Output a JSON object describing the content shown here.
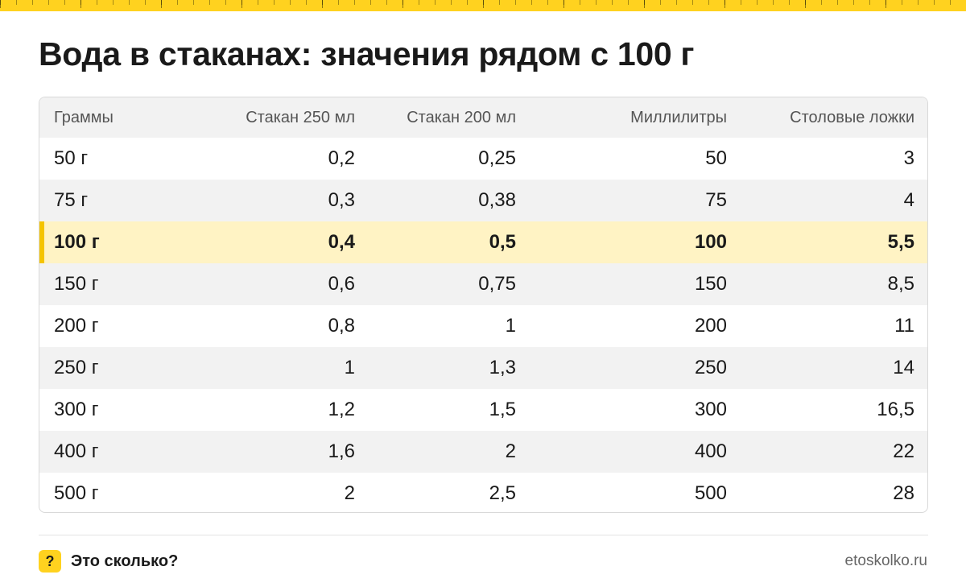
{
  "title": "Вода в стаканах: значения рядом с 100 г",
  "table": {
    "headers": [
      "Граммы",
      "Стакан 250 мл",
      "Стакан 200 мл",
      "Миллилитры",
      "Столовые ложки"
    ],
    "rows": [
      [
        "50 г",
        "0,2",
        "0,25",
        "50",
        "3"
      ],
      [
        "75 г",
        "0,3",
        "0,38",
        "75",
        "4"
      ],
      [
        "100 г",
        "0,4",
        "0,5",
        "100",
        "5,5"
      ],
      [
        "150 г",
        "0,6",
        "0,75",
        "150",
        "8,5"
      ],
      [
        "200 г",
        "0,8",
        "1",
        "200",
        "11"
      ],
      [
        "250 г",
        "1",
        "1,3",
        "250",
        "14"
      ],
      [
        "300 г",
        "1,2",
        "1,5",
        "300",
        "16,5"
      ],
      [
        "400 г",
        "1,6",
        "2",
        "400",
        "22"
      ],
      [
        "500 г",
        "2",
        "2,5",
        "500",
        "28"
      ]
    ],
    "highlight_row": 2
  },
  "footer": {
    "icon_symbol": "?",
    "brand": "Это сколько?",
    "site": "etoskolko.ru"
  },
  "colors": {
    "accent": "#ffd21f",
    "highlight_bg": "#fff3c4",
    "highlight_bar": "#f5c400"
  }
}
